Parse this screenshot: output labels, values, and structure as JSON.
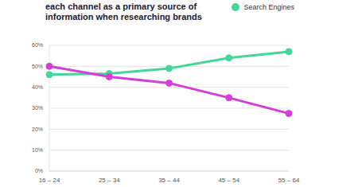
{
  "chart_data": {
    "type": "line",
    "title": "each channel as a primary source of information when researching brands",
    "categories": [
      "16 – 24",
      "25 – 34",
      "35 – 44",
      "45 – 54",
      "55 – 64"
    ],
    "series": [
      {
        "name": "Search Engines",
        "color": "#45d69a",
        "values": [
          46,
          46.5,
          49,
          54,
          57
        ]
      },
      {
        "color": "#d23fd6",
        "values": [
          50,
          45,
          42,
          35,
          27.5
        ]
      }
    ],
    "ylim": [
      0,
      60
    ],
    "yticks": [
      {
        "value": 0,
        "label": "0%"
      },
      {
        "value": 10,
        "label": "10%"
      },
      {
        "value": 20,
        "label": "20%"
      },
      {
        "value": 30,
        "label": "30%"
      },
      {
        "value": 40,
        "label": "40%"
      },
      {
        "value": 50,
        "label": "50%"
      },
      {
        "value": 60,
        "label": "60%"
      }
    ],
    "grid": true,
    "legend": "top-right",
    "marker": "circle"
  }
}
